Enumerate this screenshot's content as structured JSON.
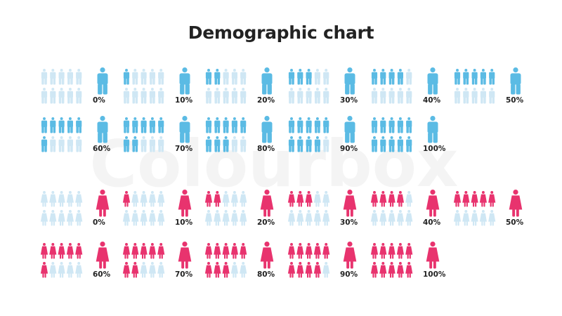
{
  "title": "Demographic chart",
  "watermark": "Colourbox",
  "colors": {
    "male_filled": "#5bbbe4",
    "male_empty": "#cfe7f4",
    "female_filled": "#e8336e",
    "female_empty": "#cfe7f4",
    "label": "#222222"
  },
  "chart_data": [
    {
      "type": "pictogram",
      "title": "",
      "icon": "male-figure",
      "units_per_chart": 10,
      "categories": [
        "0%",
        "10%",
        "20%",
        "30%",
        "40%",
        "50%",
        "60%",
        "70%",
        "80%",
        "90%",
        "100%"
      ],
      "values": [
        0,
        10,
        20,
        30,
        40,
        50,
        60,
        70,
        80,
        90,
        100
      ]
    },
    {
      "type": "pictogram",
      "title": "",
      "icon": "female-figure",
      "units_per_chart": 10,
      "categories": [
        "0%",
        "10%",
        "20%",
        "30%",
        "40%",
        "50%",
        "60%",
        "70%",
        "80%",
        "90%",
        "100%"
      ],
      "values": [
        0,
        10,
        20,
        30,
        40,
        50,
        60,
        70,
        80,
        90,
        100
      ]
    }
  ]
}
